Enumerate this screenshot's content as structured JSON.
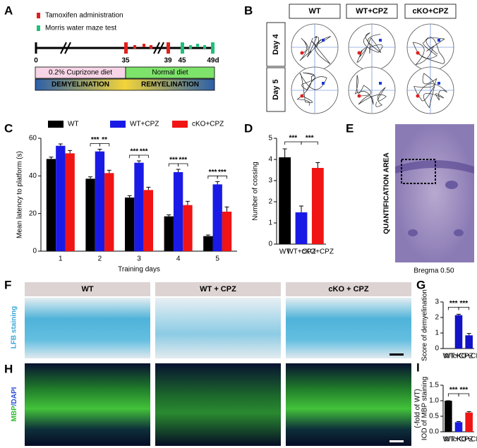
{
  "panel_labels": [
    "A",
    "B",
    "C",
    "D",
    "E",
    "F",
    "G",
    "H",
    "I"
  ],
  "panel_a": {
    "legend": [
      "Tamoxifen administration",
      "Morris water maze test"
    ],
    "timeline": [
      "0",
      "35",
      "39",
      "45",
      "49d"
    ],
    "diets": [
      "0.2% Cuprizone diet",
      "Normal diet"
    ],
    "phases": [
      "DEMYELINATION",
      "REMYELINATION"
    ]
  },
  "panel_b": {
    "columns": [
      "WT",
      "WT+CPZ",
      "cKO+CPZ"
    ],
    "rows": [
      "Day 4",
      "Day 5"
    ]
  },
  "panel_e": {
    "side_label": "QUANTIFICATION AREA",
    "caption": "Bregma 0.50"
  },
  "panel_f": {
    "columns": [
      "WT",
      "WT + CPZ",
      "cKO + CPZ"
    ],
    "side_label": "LFB staining"
  },
  "panel_h": {
    "side_label": [
      "MBP",
      "/DAPI"
    ]
  },
  "chart_data": [
    {
      "type": "grouped-bar",
      "xlabel": "Training days",
      "ylabel": "Mean latency to platform (s)",
      "categories": [
        "1",
        "2",
        "3",
        "4",
        "5"
      ],
      "series": [
        {
          "name": "WT",
          "color": "#000000",
          "values": [
            49,
            38.5,
            28.5,
            18.5,
            8
          ],
          "errors": [
            1,
            1,
            1,
            0.8,
            0.6
          ]
        },
        {
          "name": "WT+CPZ",
          "color": "#1a1ae6",
          "values": [
            56,
            53,
            47,
            42,
            35.5
          ],
          "errors": [
            1,
            1.2,
            1,
            1.5,
            1.5
          ]
        },
        {
          "name": "cKO+CPZ",
          "color": "#f01414",
          "values": [
            52,
            41.5,
            32.5,
            24.5,
            21
          ],
          "errors": [
            1.5,
            1.5,
            1.5,
            2,
            2.5
          ]
        }
      ],
      "ylim": [
        0,
        60
      ],
      "yticks": [
        0,
        20,
        40,
        60
      ],
      "annotations": [
        "***",
        "**",
        "***",
        "***",
        "***",
        "***",
        "***",
        "***",
        "***",
        "***"
      ]
    },
    {
      "type": "bar",
      "ylabel": "Number of cossing",
      "categories": [
        "WT",
        "WT+CPZ",
        "cKO+CPZ"
      ],
      "values": [
        4.1,
        1.5,
        3.6
      ],
      "errors": [
        0.4,
        0.3,
        0.25
      ],
      "colors": [
        "#000000",
        "#1a1ae6",
        "#f01414"
      ],
      "ylim": [
        0,
        5
      ],
      "yticks": [
        0,
        1,
        2,
        3,
        4,
        5
      ],
      "annotations": [
        "***",
        "***"
      ]
    },
    {
      "type": "bar",
      "ylabel": "Score of demyelination",
      "categories": [
        "WT",
        "WT+CPZ",
        "cKO+CPZ"
      ],
      "values": [
        0,
        2.15,
        0.85
      ],
      "errors": [
        0,
        0.06,
        0.12
      ],
      "colors": [
        "#000000",
        "#1212c8",
        "#1212c8"
      ],
      "ylim": [
        0,
        3
      ],
      "yticks": [
        0,
        1,
        2,
        3
      ],
      "annotations": [
        "***",
        "***"
      ]
    },
    {
      "type": "bar",
      "ylabel": [
        "IOD of MBP staining",
        "(-fold of WT)"
      ],
      "categories": [
        "WT",
        "WT+CPZ",
        "cKO+CPZ"
      ],
      "values": [
        1.0,
        0.31,
        0.62
      ],
      "errors": [
        0,
        0.02,
        0.03
      ],
      "colors": [
        "#000000",
        "#1a1ae6",
        "#f01414"
      ],
      "ylim": [
        0,
        1.5
      ],
      "yticks": [
        {
          "value": 0,
          "label": "0.0"
        },
        0.5,
        {
          "value": 1,
          "label": "1.0"
        },
        1.5
      ],
      "annotations": [
        "***",
        "***"
      ]
    }
  ]
}
